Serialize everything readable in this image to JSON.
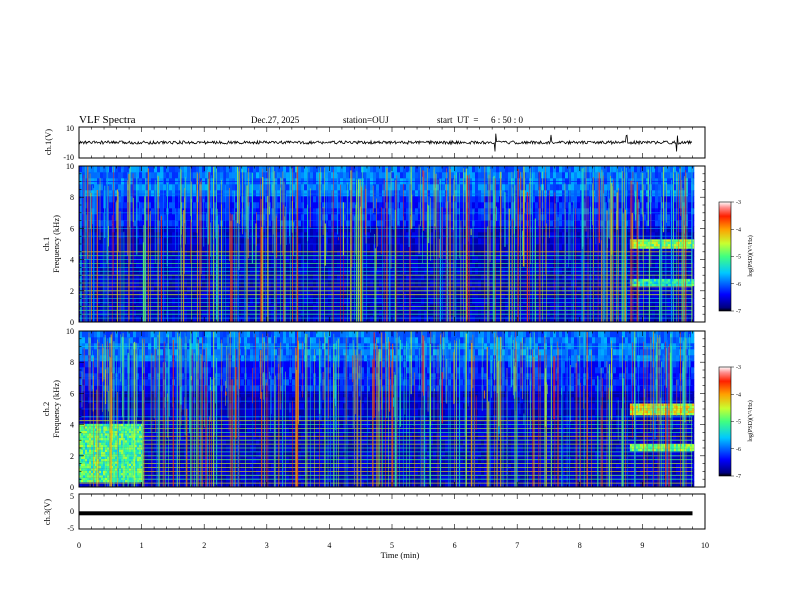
{
  "header": {
    "title": "VLF Spectra",
    "date": "Dec.27, 2025",
    "station": "station=OUJ",
    "start_label": "start  UT  =",
    "start_time": "6 : 50 : 0"
  },
  "chart_data": [
    {
      "type": "line",
      "panel": "ch1-waveform",
      "ylabel": "ch.1(V)",
      "ylim": [
        -10,
        10
      ],
      "y_ticks": [
        "10",
        "-10"
      ],
      "baseline": 0,
      "description_values": {
        "noise_amplitude_v": 1.0,
        "spikes_at_min": [
          6.65,
          7.54,
          8.75,
          9.55
        ]
      }
    },
    {
      "type": "heatmap",
      "panel": "ch1-spectrogram",
      "ylabel_top": "ch.1",
      "ylabel": "Frequency (kHz)",
      "xlim": [
        0,
        10
      ],
      "ylim": [
        0,
        10
      ],
      "y_ticks": [
        "0",
        "2",
        "4",
        "6",
        "8",
        "10"
      ],
      "data_end_min": 9.8,
      "colorbar": {
        "label": "log(PSD)(V²/Hz)",
        "range": [
          -7,
          -3
        ],
        "ticks": [
          "-3",
          "-4",
          "-5",
          "-6",
          "-7"
        ]
      },
      "features": [
        {
          "kind": "band",
          "t0": 8.8,
          "t1": 9.8,
          "f0": 4.7,
          "f1": 5.2,
          "level": -4.5
        },
        {
          "kind": "band",
          "t0": 8.8,
          "t1": 9.8,
          "f0": 2.3,
          "f1": 2.6,
          "level": -5.0
        }
      ]
    },
    {
      "type": "heatmap",
      "panel": "ch2-spectrogram",
      "ylabel_top": "ch.2",
      "ylabel": "Frequency (kHz)",
      "xlim": [
        0,
        10
      ],
      "ylim": [
        0,
        10
      ],
      "y_ticks": [
        "0",
        "2",
        "4",
        "6",
        "8",
        "10"
      ],
      "data_end_min": 9.8,
      "colorbar": {
        "label": "log(PSD)(V²/Hz)",
        "range": [
          -7,
          -3
        ],
        "ticks": [
          "-3",
          "-4",
          "-5",
          "-6",
          "-7"
        ]
      },
      "features": [
        {
          "kind": "band",
          "t0": 0.0,
          "t1": 1.0,
          "f0": 0.3,
          "f1": 4.0,
          "level": -4.8
        },
        {
          "kind": "band",
          "t0": 8.8,
          "t1": 9.8,
          "f0": 4.6,
          "f1": 5.3,
          "level": -4.2
        },
        {
          "kind": "band",
          "t0": 8.8,
          "t1": 9.8,
          "f0": 2.3,
          "f1": 2.7,
          "level": -4.6
        }
      ]
    },
    {
      "type": "line",
      "panel": "ch3-waveform",
      "ylabel": "ch.3(V)",
      "ylim": [
        -5,
        5
      ],
      "y_ticks": [
        "5",
        "0",
        "-5"
      ],
      "level_v": -0.5,
      "xlabel": "Time (min)",
      "x_ticks": [
        "0",
        "1",
        "2",
        "3",
        "4",
        "5",
        "6",
        "7",
        "8",
        "9",
        "10"
      ]
    }
  ]
}
